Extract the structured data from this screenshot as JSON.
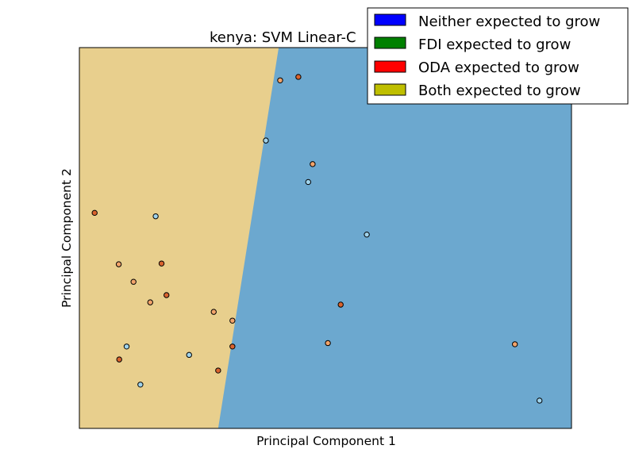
{
  "chart_data": {
    "type": "scatter",
    "title": "kenya: SVM Linear-C",
    "xlabel": "Principal Component 1",
    "ylabel": "Principal Component 2",
    "xlim": [
      0,
      100
    ],
    "ylim": [
      0,
      100
    ],
    "grid": false,
    "legend_placement": "top-right",
    "legend": [
      {
        "label": "Neither expected to grow",
        "color": "#0000ff"
      },
      {
        "label": "FDI expected to grow",
        "color": "#008000"
      },
      {
        "label": "ODA expected to grow",
        "color": "#ff0000"
      },
      {
        "label": "Both expected to grow",
        "color": "#bfbf00"
      }
    ],
    "regions": [
      {
        "name": "left",
        "color": "#e8cf8d",
        "boundary_x_bottom": 28.2,
        "boundary_x_top": 40.5
      },
      {
        "name": "right",
        "color": "#6ca8cf"
      }
    ],
    "series": [
      {
        "class": "light-blue",
        "color": "#9fd3ec",
        "points": [
          [
            15.5,
            55.7
          ],
          [
            37.9,
            75.6
          ],
          [
            46.5,
            64.7
          ],
          [
            58.4,
            50.9
          ],
          [
            9.6,
            21.5
          ],
          [
            22.3,
            19.3
          ],
          [
            12.4,
            11.5
          ],
          [
            93.5,
            7.3
          ]
        ]
      },
      {
        "class": "orange",
        "color": "#f2a36a",
        "points": [
          [
            40.8,
            91.4
          ],
          [
            47.4,
            69.4
          ],
          [
            8.0,
            43.1
          ],
          [
            11.0,
            38.5
          ],
          [
            14.4,
            33.1
          ],
          [
            27.3,
            30.6
          ],
          [
            31.1,
            28.3
          ],
          [
            50.5,
            22.4
          ],
          [
            88.5,
            22.1
          ]
        ]
      },
      {
        "class": "dark-orange",
        "color": "#d9632e",
        "points": [
          [
            44.5,
            92.3
          ],
          [
            3.1,
            56.6
          ],
          [
            16.7,
            43.3
          ],
          [
            17.7,
            35.0
          ],
          [
            53.1,
            32.5
          ],
          [
            31.1,
            21.5
          ],
          [
            8.1,
            18.1
          ],
          [
            28.2,
            15.2
          ]
        ]
      }
    ]
  }
}
